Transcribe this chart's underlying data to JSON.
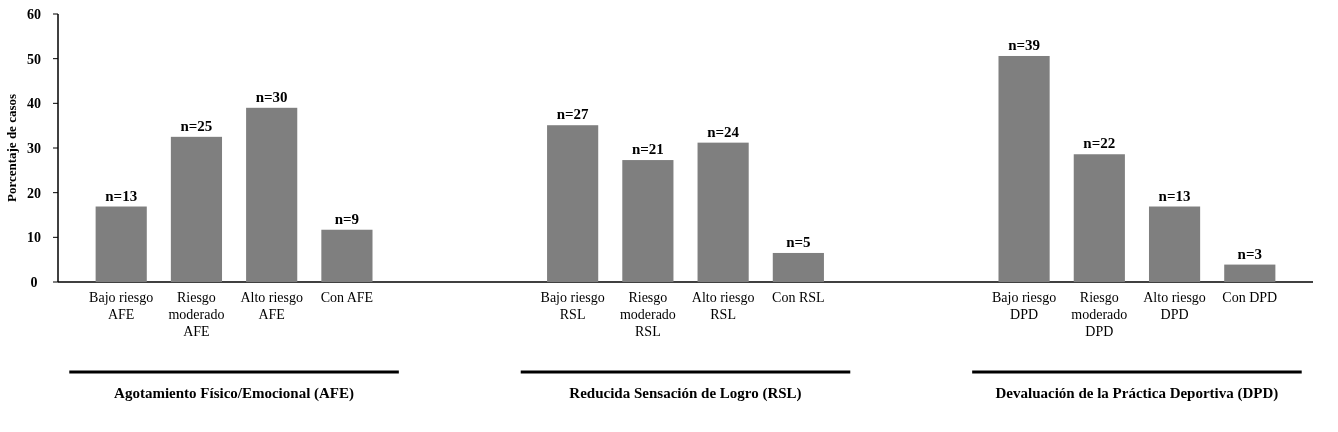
{
  "chart_data": {
    "type": "bar",
    "ylabel": "Porcentaje de casos",
    "categories": [
      "Bajo riesgo AFE",
      "Riesgo moderado AFE",
      "Alto riesgo AFE",
      "Con AFE",
      null,
      null,
      "Bajo riesgo RSL",
      "Riesgo moderado RSL",
      "Alto riesgo RSL",
      "Con RSL",
      null,
      null,
      "Bajo riesgo DPD",
      "Riesgo moderado DPD",
      "Alto riesgo DPD",
      "Con DPD"
    ],
    "values": [
      16.9,
      32.5,
      39.0,
      11.7,
      null,
      null,
      35.1,
      27.3,
      31.2,
      6.5,
      null,
      null,
      50.6,
      28.6,
      16.9,
      3.9
    ],
    "color": "#7f7f7f",
    "ylim": [
      0,
      60
    ],
    "yticks": [
      0,
      10,
      20,
      30,
      40,
      50,
      60
    ],
    "grid": false,
    "annotations": [
      "Agotamiento Físico/Emocional (AFE)",
      "Reducida Sensación de Logro (RSL)",
      "Devaluación de la Práctica Deportiva (DPD)",
      {
        "text": "n=13",
        "x": "Bajo riesgo AFE",
        "y": 16.9
      },
      {
        "text": "n=25",
        "x": "Riesgo moderado AFE",
        "y": 32.5
      },
      {
        "text": "n=30",
        "x": "Alto riesgo AFE",
        "y": 39.0
      },
      {
        "text": "n=9",
        "x": "Con AFE",
        "y": 11.7
      },
      {
        "text": "n=27",
        "x": "Bajo riesgo RSL",
        "y": 35.1
      },
      {
        "text": "n=21",
        "x": "Riesgo moderado RSL",
        "y": 27.3
      },
      {
        "text": "n=24",
        "x": "Alto riesgo RSL",
        "y": 31.2
      },
      {
        "text": "n=5",
        "x": "Con RSL",
        "y": 6.5
      },
      {
        "text": "n=39",
        "x": "Bajo riesgo DPD",
        "y": 50.6
      },
      {
        "text": "n=22",
        "x": "Riesgo moderado DPD",
        "y": 28.6
      },
      {
        "text": "n=13",
        "x": "Alto riesgo DPD",
        "y": 16.9
      },
      {
        "text": "n=3",
        "x": "Con DPD",
        "y": 3.9
      }
    ]
  }
}
